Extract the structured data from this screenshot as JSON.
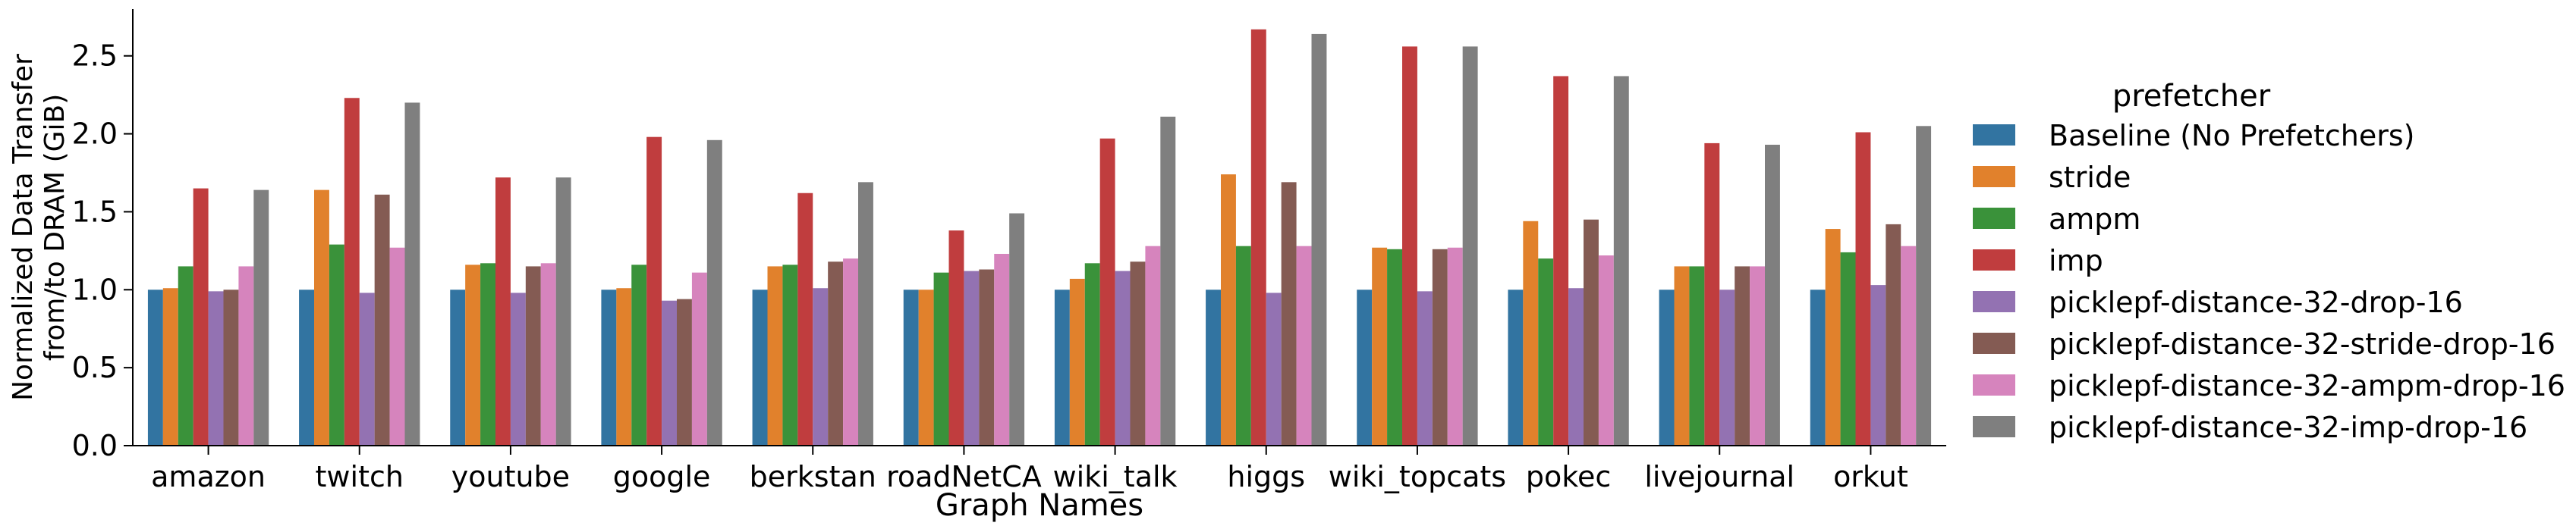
{
  "chart_data": {
    "type": "bar",
    "title": "",
    "xlabel": "Graph Names",
    "ylabel": [
      "Normalized Data Transfer",
      "from/to DRAM (GiB)"
    ],
    "ylim": [
      0,
      2.8
    ],
    "yticks": [
      "0.0",
      "0.5",
      "1.0",
      "1.5",
      "2.0",
      "2.5"
    ],
    "ytick_values": [
      0.0,
      0.5,
      1.0,
      1.5,
      2.0,
      2.5
    ],
    "grid": false,
    "legend": {
      "title": "prefetcher",
      "position": "right"
    },
    "categories": [
      "amazon",
      "twitch",
      "youtube",
      "google",
      "berkstan",
      "roadNetCA",
      "wiki_talk",
      "higgs",
      "wiki_topcats",
      "pokec",
      "livejournal",
      "orkut"
    ],
    "series": [
      {
        "name": "Baseline (No Prefetchers)",
        "color": "#3274a1",
        "values": [
          1.0,
          1.0,
          1.0,
          1.0,
          1.0,
          1.0,
          1.0,
          1.0,
          1.0,
          1.0,
          1.0,
          1.0
        ]
      },
      {
        "name": "stride",
        "color": "#e1812c",
        "values": [
          1.01,
          1.64,
          1.16,
          1.01,
          1.15,
          1.0,
          1.07,
          1.74,
          1.27,
          1.44,
          1.15,
          1.39
        ]
      },
      {
        "name": "ampm",
        "color": "#3a923a",
        "values": [
          1.15,
          1.29,
          1.17,
          1.16,
          1.16,
          1.11,
          1.17,
          1.28,
          1.26,
          1.2,
          1.15,
          1.24
        ]
      },
      {
        "name": "imp",
        "color": "#c03d3e",
        "values": [
          1.65,
          2.23,
          1.72,
          1.98,
          1.62,
          1.38,
          1.97,
          2.67,
          2.56,
          2.37,
          1.94,
          2.01
        ]
      },
      {
        "name": "picklepf-distance-32-drop-16",
        "color": "#9372b2",
        "values": [
          0.99,
          0.98,
          0.98,
          0.93,
          1.01,
          1.12,
          1.12,
          0.98,
          0.99,
          1.01,
          1.0,
          1.03
        ]
      },
      {
        "name": "picklepf-distance-32-stride-drop-16",
        "color": "#845b53",
        "values": [
          1.0,
          1.61,
          1.15,
          0.94,
          1.18,
          1.13,
          1.18,
          1.69,
          1.26,
          1.45,
          1.15,
          1.42
        ]
      },
      {
        "name": "picklepf-distance-32-ampm-drop-16",
        "color": "#d684bd",
        "values": [
          1.15,
          1.27,
          1.17,
          1.11,
          1.2,
          1.23,
          1.28,
          1.28,
          1.27,
          1.22,
          1.15,
          1.28
        ]
      },
      {
        "name": "picklepf-distance-32-imp-drop-16",
        "color": "#7f7f7f",
        "values": [
          1.64,
          2.2,
          1.72,
          1.96,
          1.69,
          1.49,
          2.11,
          2.64,
          2.56,
          2.37,
          1.93,
          2.05
        ]
      }
    ]
  }
}
